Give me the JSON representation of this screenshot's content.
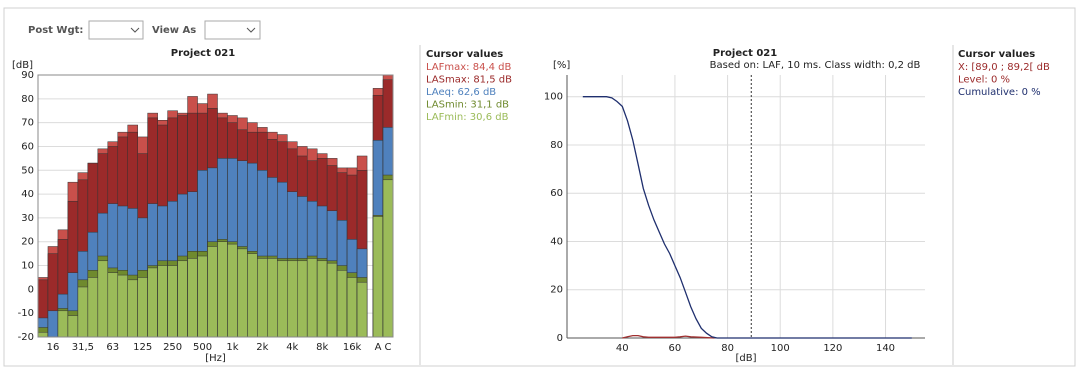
{
  "toolbar": {
    "post_weighting_label": "Post Wgt:",
    "view_as_label": "View As"
  },
  "cursor_panels": [
    {
      "title": "Cursor values",
      "lines": [
        {
          "text": "LAFmax: 84,4 dB",
          "color": "#c9504b"
        },
        {
          "text": "LASmax: 81,5 dB",
          "color": "#9b2a2a"
        },
        {
          "text": "LAeq: 62,6 dB",
          "color": "#4f81bd"
        },
        {
          "text": "LASmin: 31,1 dB",
          "color": "#6f8a2e"
        },
        {
          "text": "LAFmin: 30,6 dB",
          "color": "#9bbb59"
        }
      ]
    },
    {
      "title": "Cursor values",
      "lines": [
        {
          "text": "X: [89,0 ; 89,2[ dB",
          "color": "#9b2a2a"
        },
        {
          "text": "Level: 0 %",
          "color": "#9b2a2a"
        },
        {
          "text": "Cumulative: 0 %",
          "color": "#1f2f6e"
        }
      ]
    }
  ],
  "chart_data": [
    {
      "type": "bar",
      "title": "Project 021",
      "y_label": "[dB]",
      "x_label": "[Hz]",
      "categories": [
        null,
        "16",
        null,
        null,
        "31,5",
        null,
        null,
        "63",
        null,
        null,
        "125",
        null,
        null,
        "250",
        null,
        null,
        "500",
        null,
        null,
        "1k",
        null,
        null,
        "2k",
        null,
        null,
        "4k",
        null,
        null,
        "8k",
        null,
        null,
        "16k",
        null,
        "A",
        "C"
      ],
      "series": [
        {
          "name": "LAFmax",
          "color": "#c9504b",
          "values": [
            5,
            18,
            25,
            45,
            49,
            53,
            59,
            62,
            66,
            69,
            64,
            74,
            71,
            75,
            74,
            81,
            78,
            82,
            74,
            73,
            72,
            70,
            68,
            66,
            65,
            62,
            60,
            59,
            57,
            55,
            51,
            51,
            56,
            84.4,
            90
          ]
        },
        {
          "name": "LASmax",
          "color": "#9b2a2a",
          "values": [
            4,
            15,
            21,
            37,
            46,
            53,
            57,
            60,
            64,
            66,
            57,
            72,
            69,
            72,
            73,
            74,
            74,
            76,
            72,
            70,
            67,
            66,
            66,
            63,
            62,
            59,
            56,
            54,
            55,
            52,
            49,
            48,
            50,
            81.5,
            88
          ]
        },
        {
          "name": "LAeq",
          "color": "#4f81bd",
          "values": [
            -12,
            -9,
            -2,
            7,
            16,
            24,
            32,
            36,
            35,
            34,
            30,
            36,
            35,
            37,
            40,
            41,
            50,
            51,
            55,
            55,
            54,
            53,
            50,
            47,
            45,
            41,
            39,
            37,
            35,
            33,
            29,
            21,
            17,
            62.6,
            68
          ]
        },
        {
          "name": "LASmin",
          "color": "#6f8a2e",
          "values": [
            -16,
            -20,
            -8,
            -9,
            4,
            8,
            14,
            9,
            8,
            6,
            8,
            10,
            12,
            12,
            14,
            16,
            16,
            20,
            21,
            20,
            18,
            16,
            14,
            14,
            13,
            13,
            13,
            14,
            13,
            12,
            10,
            7,
            5,
            31.1,
            48
          ]
        },
        {
          "name": "LAFmin",
          "color": "#9bbb59",
          "values": [
            -18,
            -20,
            -9,
            -11,
            1,
            5,
            12,
            7,
            6,
            4,
            5,
            9,
            10,
            10,
            12,
            13,
            14,
            18,
            20,
            19,
            17,
            15,
            13,
            13,
            12,
            12,
            12,
            13,
            12,
            11,
            8,
            5,
            3,
            30.6,
            46
          ]
        }
      ],
      "ylim": [
        -20,
        90
      ],
      "yticks": [
        -20,
        -10,
        0,
        10,
        20,
        30,
        40,
        50,
        60,
        70,
        80,
        90
      ],
      "grid": true
    },
    {
      "type": "line",
      "title": "Project 021",
      "subtitle": "Based on: LAF, 10 ms. Class width: 0,2 dB",
      "y_label": "[%]",
      "x_label": "[dB]",
      "series": [
        {
          "name": "Cumulative",
          "color": "#1f2f6e",
          "x": [
            25,
            30,
            34,
            36,
            38,
            40,
            42,
            44,
            46,
            48,
            50,
            52,
            54,
            56,
            58,
            60,
            62,
            64,
            66,
            68,
            70,
            72,
            74,
            76,
            78,
            150
          ],
          "values": [
            100,
            100,
            100,
            99.5,
            98,
            96,
            90,
            82,
            72,
            62,
            55,
            49,
            44,
            39,
            35,
            30,
            25,
            19,
            13,
            8,
            4,
            2,
            0.5,
            0,
            0,
            0
          ]
        },
        {
          "name": "Level",
          "color": "#a03030",
          "x": [
            40,
            42,
            44,
            46,
            48,
            50,
            55,
            60,
            62,
            64,
            66,
            70,
            75
          ],
          "values": [
            0,
            0.5,
            1,
            1,
            0.5,
            0.3,
            0.3,
            0.3,
            0.5,
            0.8,
            0.5,
            0.3,
            0
          ]
        }
      ],
      "cursor_x": 89,
      "xlim": [
        19,
        155
      ],
      "xticks": [
        40,
        60,
        80,
        100,
        120,
        140
      ],
      "ylim": [
        0,
        109
      ],
      "yticks": [
        0,
        20,
        40,
        60,
        80,
        100
      ],
      "grid": true
    }
  ]
}
